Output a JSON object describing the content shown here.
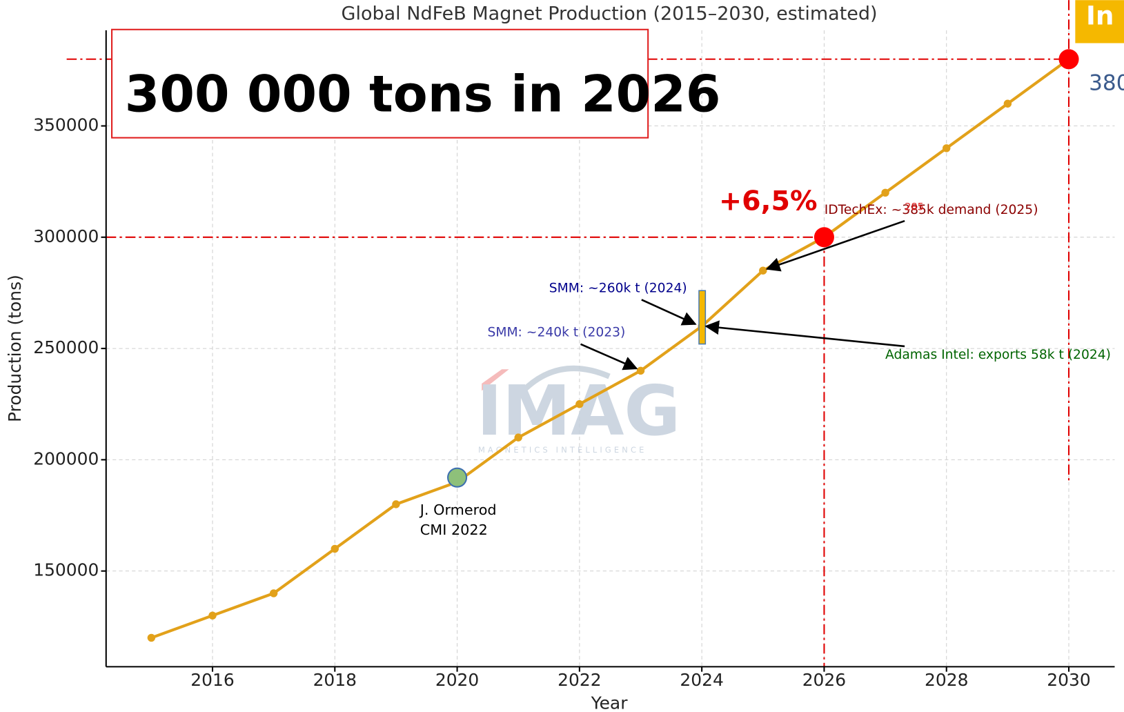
{
  "chart_data": {
    "type": "line",
    "title": "Global NdFeB Magnet Production (2015–2030, estimated)",
    "x_label": "Year",
    "y_label": "Production (tons)",
    "x": [
      2015,
      2016,
      2017,
      2018,
      2019,
      2020,
      2021,
      2022,
      2023,
      2024,
      2025,
      2026,
      2027,
      2028,
      2029,
      2030
    ],
    "series": [
      {
        "name": "Production",
        "color": "#e2a11a",
        "values": [
          120000,
          130000,
          140000,
          160000,
          180000,
          190000,
          210000,
          225000,
          240000,
          260000,
          285000,
          300000,
          320000,
          340000,
          360000,
          380000
        ]
      }
    ],
    "xlim": [
      2014.26,
      2030.75
    ],
    "ylim": [
      107000,
      393000
    ],
    "xticks": [
      2016,
      2018,
      2020,
      2022,
      2024,
      2026,
      2028,
      2030
    ],
    "yticks": [
      150000,
      200000,
      250000,
      300000,
      350000
    ],
    "grid": true,
    "highlights": [
      {
        "x": 2026,
        "y": 300000
      },
      {
        "x": 2030,
        "y": 380000
      }
    ],
    "source_marker": {
      "x": 2020,
      "y": 192000
    },
    "range_marker": {
      "x": 2024,
      "low": 252000,
      "high": 276000
    },
    "headline": "300 000 tons in 2026",
    "growth_label": "+6,5%",
    "end_label": "380",
    "corner_label": "In",
    "annotations": [
      "IDTechEx: ~385k demand (2025)",
      "285",
      "SMM: ~260k t (2024)",
      "SMM: ~240k t (2023)",
      "Adamas Intel: exports 58k t (2024)",
      "J. Ormerod",
      "CMI 2022"
    ],
    "watermark": "IMAG",
    "watermark_sub": "MAGNETICS INTELLIGENCE"
  }
}
